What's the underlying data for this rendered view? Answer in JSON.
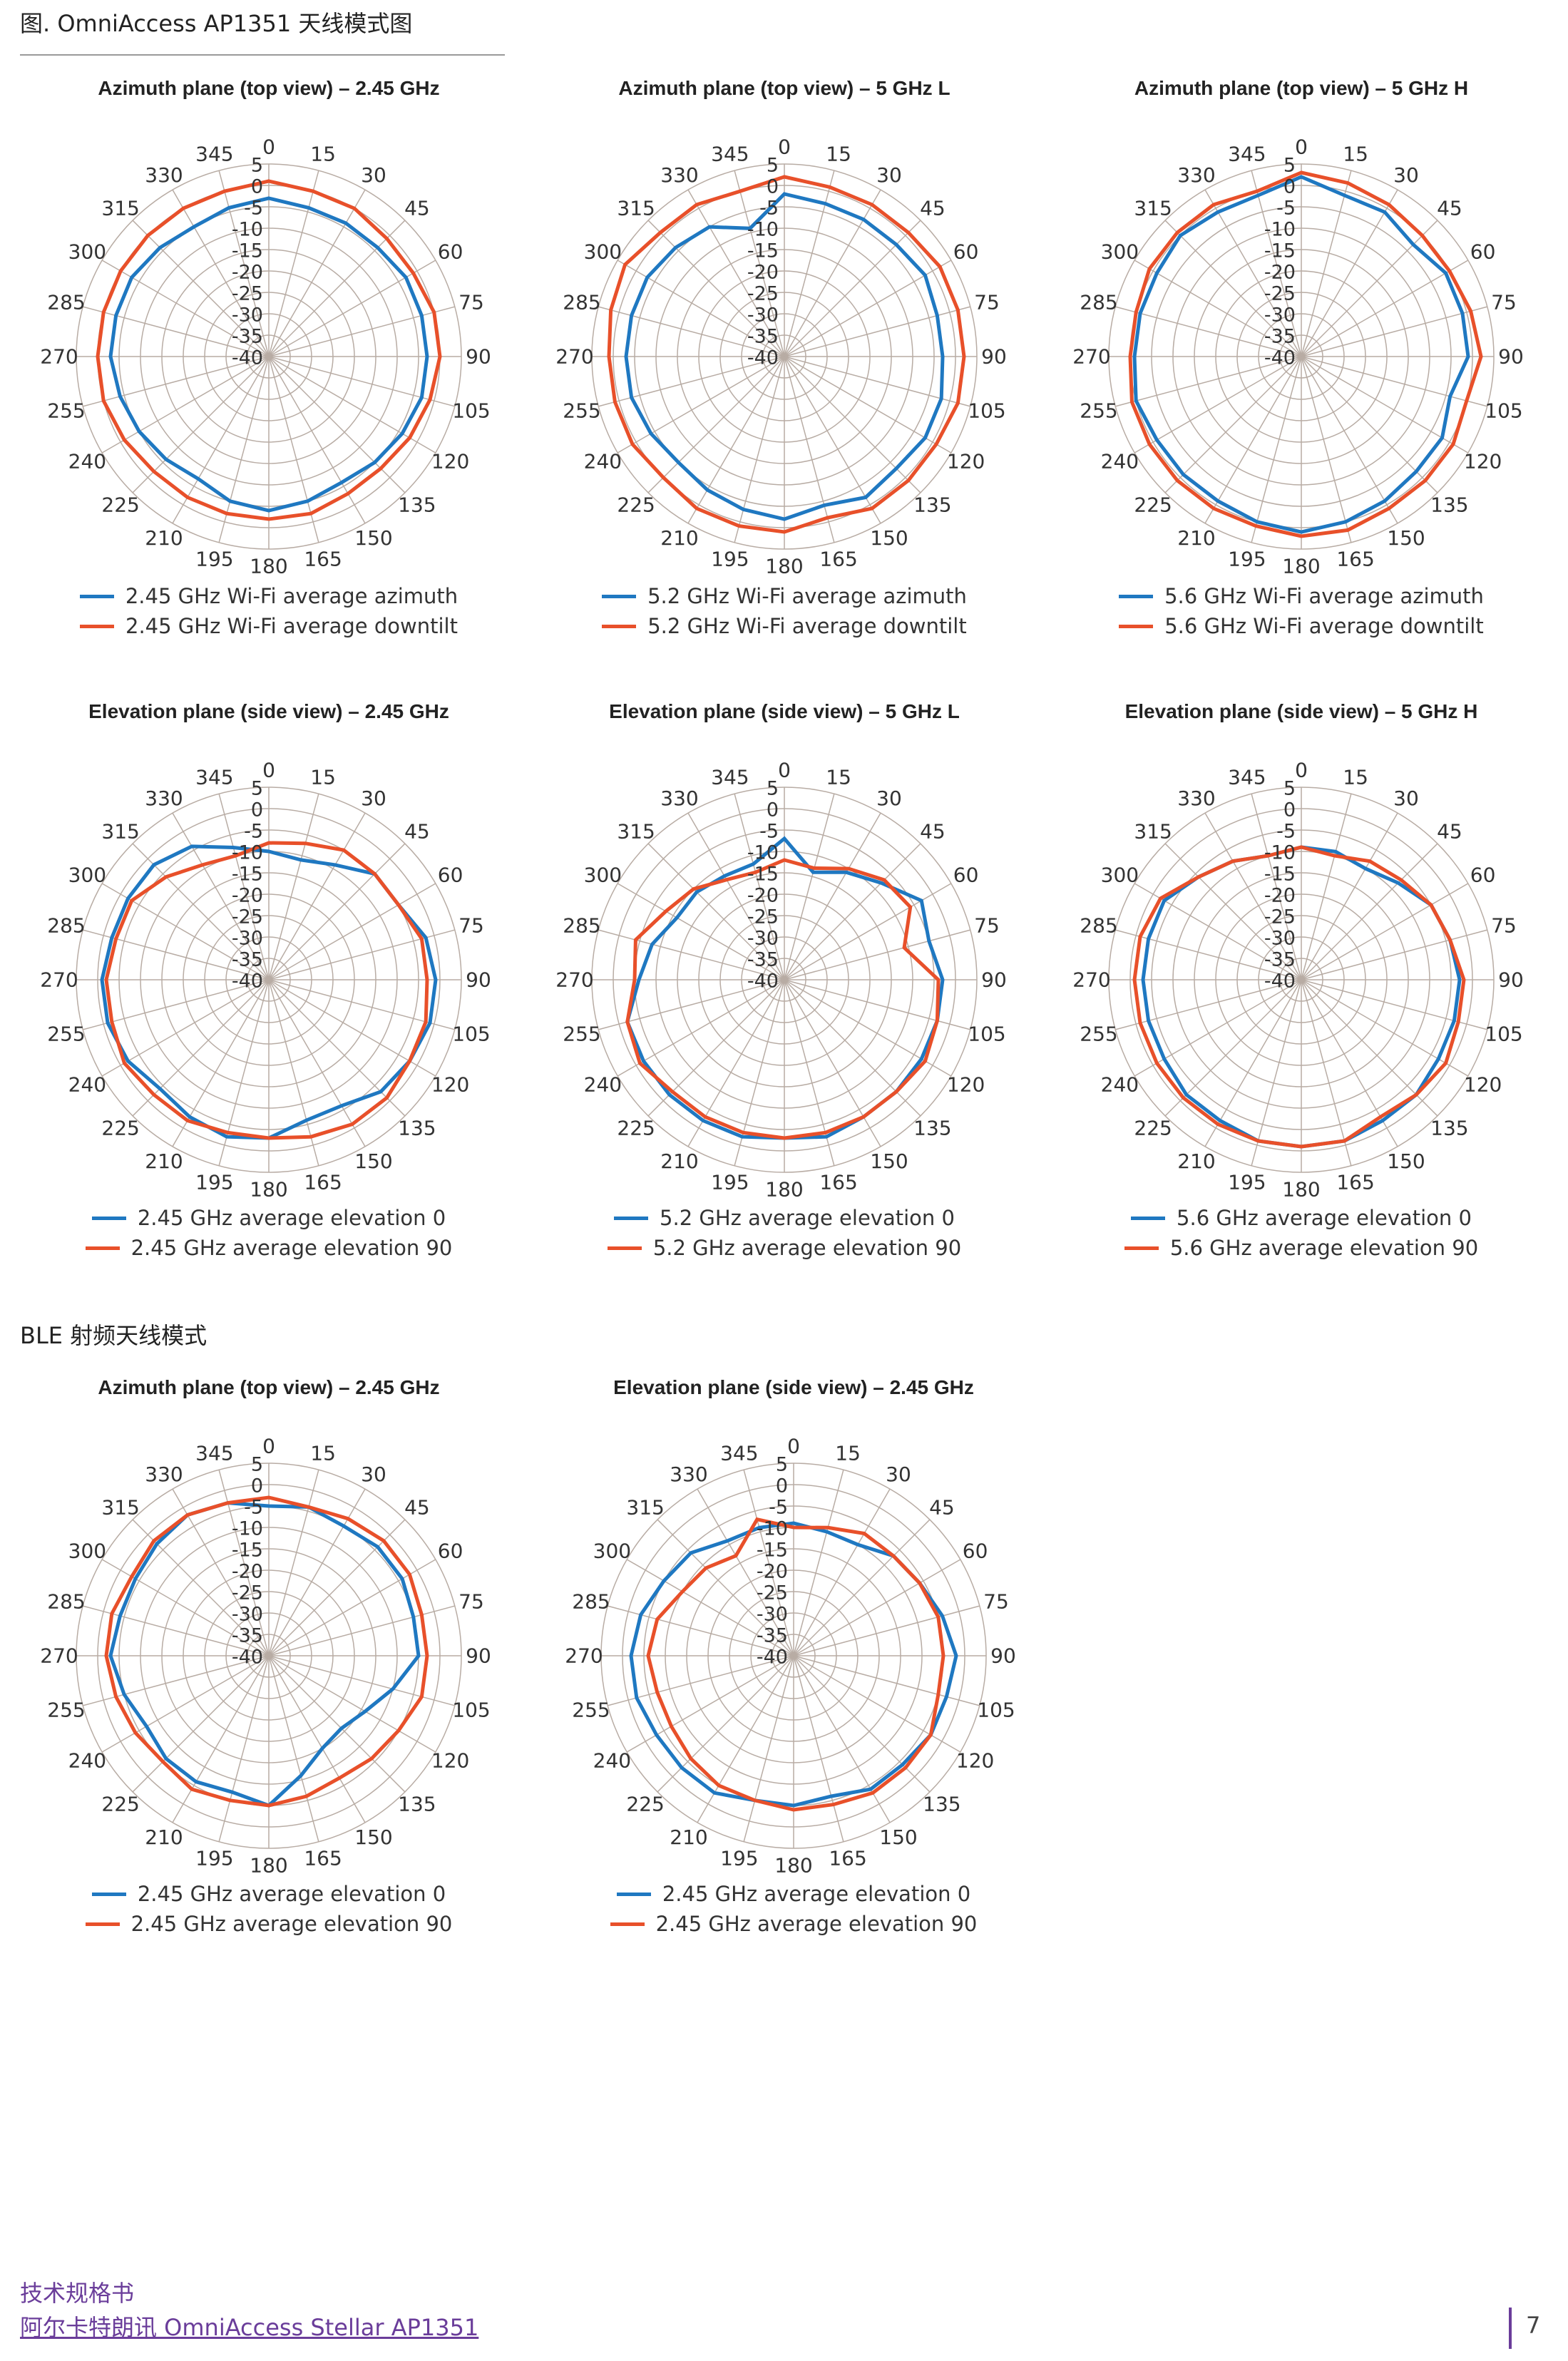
{
  "page": {
    "figure_title": "图. OmniAccess AP1351 天线模式图",
    "ble_section_title": "BLE 射频天线模式",
    "footer_line1": "技术规格书",
    "footer_line2": "阿尔卡特朗讯 OmniAccess Stellar AP1351",
    "page_number": "7"
  },
  "colors": {
    "blue": "#1f78c1",
    "red": "#e8502a",
    "grid": "#b8aca4",
    "axis": "#8a7d75"
  },
  "radial_ticks": [
    "5",
    "0",
    "-5",
    "-10",
    "-15",
    "-20",
    "-25",
    "-30",
    "-35",
    "-40"
  ],
  "angle_ticks": [
    "0",
    "15",
    "30",
    "45",
    "60",
    "75",
    "90",
    "105",
    "120",
    "135",
    "150",
    "165",
    "180",
    "195",
    "210",
    "225",
    "240",
    "255",
    "270",
    "285",
    "300",
    "315",
    "330",
    "345"
  ],
  "chart_data": [
    {
      "type": "polar",
      "title": "Azimuth plane (top view) – 2.45 GHz",
      "rlim": [
        -40,
        5
      ],
      "theta": [
        0,
        15,
        30,
        45,
        60,
        75,
        90,
        105,
        120,
        135,
        150,
        165,
        180,
        195,
        210,
        225,
        240,
        255,
        270,
        285,
        300,
        315,
        330,
        345
      ],
      "series": [
        {
          "name": "2.45 GHz Wi-Fi average azimuth",
          "color": "blue",
          "values": [
            -3,
            -4,
            -4,
            -4,
            -3,
            -3,
            -3,
            -3,
            -4,
            -5,
            -6,
            -5,
            -4,
            -5,
            -7,
            -6,
            -5,
            -4,
            -3,
            -3,
            -3,
            -4,
            -5,
            -4
          ]
        },
        {
          "name": "2.45 GHz Wi-Fi average downtilt",
          "color": "red",
          "values": [
            1,
            0,
            0,
            -1,
            -1,
            0,
            0,
            -1,
            -2,
            -3,
            -3,
            -2,
            -2,
            -2,
            -2,
            -2,
            -1,
            0,
            0,
            0,
            0,
            0,
            0,
            0
          ]
        }
      ]
    },
    {
      "type": "polar",
      "title": "Azimuth plane (top view) – 5 GHz L",
      "rlim": [
        -40,
        5
      ],
      "theta": [
        0,
        15,
        30,
        45,
        60,
        75,
        90,
        105,
        120,
        135,
        150,
        165,
        180,
        195,
        210,
        225,
        240,
        255,
        270,
        285,
        300,
        315,
        330,
        345
      ],
      "series": [
        {
          "name": "5.2 GHz Wi-Fi average azimuth",
          "color": "blue",
          "values": [
            -2,
            -3,
            -3,
            -3,
            -2,
            -3,
            -3,
            -2,
            -2,
            -3,
            -2,
            -4,
            -2,
            -3,
            -4,
            -5,
            -4,
            -3,
            -3,
            -3,
            -3,
            -4,
            -5,
            -9
          ]
        },
        {
          "name": "5.2 GHz Wi-Fi average downtilt",
          "color": "red",
          "values": [
            2,
            1,
            1,
            1,
            2,
            2,
            2,
            2,
            1,
            1,
            1,
            -1,
            1,
            1,
            1,
            0,
            1,
            1,
            1,
            2,
            3,
            1,
            1,
            0
          ]
        }
      ]
    },
    {
      "type": "polar",
      "title": "Azimuth plane (top view) – 5 GHz H",
      "rlim": [
        -40,
        5
      ],
      "theta": [
        0,
        15,
        30,
        45,
        60,
        75,
        90,
        105,
        120,
        135,
        150,
        165,
        180,
        195,
        210,
        225,
        240,
        255,
        270,
        285,
        300,
        315,
        330,
        345
      ],
      "series": [
        {
          "name": "5.6 GHz Wi-Fi average azimuth",
          "color": "blue",
          "values": [
            2,
            -1,
            -1,
            -3,
            -1,
            -1,
            -1,
            -4,
            -2,
            -2,
            -1,
            0,
            1,
            0,
            -1,
            -1,
            -1,
            0,
            -1,
            -1,
            -1,
            0,
            -1,
            -1
          ]
        },
        {
          "name": "5.6 GHz Wi-Fi average downtilt",
          "color": "red",
          "values": [
            3,
            2,
            1,
            0,
            0,
            1,
            2,
            0,
            1,
            1,
            1,
            2,
            2,
            1,
            1,
            1,
            1,
            1,
            0,
            0,
            1,
            1,
            1,
            0
          ]
        }
      ]
    },
    {
      "type": "polar",
      "title": "Elevation plane (side view) – 2.45 GHz",
      "rlim": [
        -40,
        5
      ],
      "theta": [
        0,
        15,
        30,
        45,
        60,
        75,
        90,
        105,
        120,
        135,
        150,
        165,
        180,
        195,
        210,
        225,
        240,
        255,
        270,
        285,
        300,
        315,
        330,
        345
      ],
      "series": [
        {
          "name": "2.45 GHz average elevation 0",
          "color": "blue",
          "values": [
            -10,
            -11,
            -9,
            -5,
            -5,
            -2,
            -1,
            -1,
            -2,
            -3,
            -6,
            -6,
            -3,
            -2,
            -3,
            -4,
            -2,
            -1,
            -1,
            -2,
            -2,
            -2,
            -4,
            -8
          ]
        },
        {
          "name": "2.45 GHz average elevation 90",
          "color": "red",
          "values": [
            -8,
            -7,
            -5,
            -5,
            -5,
            -3,
            -3,
            -2,
            -2,
            -1,
            -1,
            -2,
            -3,
            -3,
            -2,
            -2,
            -1,
            -2,
            -2,
            -3,
            -3,
            -6,
            -9,
            -10
          ]
        }
      ]
    },
    {
      "type": "polar",
      "title": "Elevation plane (side view) – 5 GHz L",
      "rlim": [
        -40,
        5
      ],
      "theta": [
        0,
        15,
        30,
        45,
        60,
        75,
        90,
        105,
        120,
        135,
        150,
        165,
        180,
        195,
        210,
        225,
        240,
        255,
        270,
        285,
        300,
        315,
        330,
        345
      ],
      "series": [
        {
          "name": "5.2 GHz average elevation 0",
          "color": "blue",
          "values": [
            -7,
            -14,
            -11,
            -8,
            -3,
            -5,
            -3,
            -3,
            -3,
            -3,
            -3,
            -2,
            -3,
            -2,
            -2,
            -2,
            -2,
            -2,
            -6,
            -8,
            -11,
            -11,
            -12,
            -12
          ]
        },
        {
          "name": "5.2 GHz average elevation 90",
          "color": "red",
          "values": [
            -12,
            -13,
            -10,
            -7,
            -6,
            -11,
            -4,
            -3,
            -2,
            -3,
            -3,
            -3,
            -3,
            -3,
            -3,
            -3,
            -1,
            -2,
            -5,
            -4,
            -8,
            -10,
            -13,
            -14
          ]
        }
      ]
    },
    {
      "type": "polar",
      "title": "Elevation plane (side view) – 5 GHz H",
      "rlim": [
        -40,
        5
      ],
      "theta": [
        0,
        15,
        30,
        45,
        60,
        75,
        90,
        105,
        120,
        135,
        150,
        165,
        180,
        195,
        210,
        225,
        240,
        255,
        270,
        285,
        300,
        315,
        330,
        345
      ],
      "series": [
        {
          "name": "5.6 GHz average elevation 0",
          "color": "blue",
          "values": [
            -9,
            -9,
            -10,
            -8,
            -5,
            -4,
            -3,
            -3,
            -3,
            -2,
            -2,
            -1,
            -1,
            -1,
            -2,
            -2,
            -3,
            -3,
            -3,
            -3,
            -3,
            -6,
            -8,
            -10
          ]
        },
        {
          "name": "5.6 GHz average elevation 90",
          "color": "red",
          "values": [
            -9,
            -10,
            -8,
            -7,
            -5,
            -4,
            -2,
            -2,
            -1,
            -2,
            -3,
            -1,
            -1,
            -1,
            -1,
            -1,
            -1,
            -1,
            -1,
            -1,
            -2,
            -6,
            -8,
            -10
          ]
        }
      ]
    },
    {
      "type": "polar",
      "title": "Azimuth plane (top view) – 2.45 GHz",
      "rlim": [
        -40,
        5
      ],
      "theta": [
        0,
        15,
        30,
        45,
        60,
        75,
        90,
        105,
        120,
        135,
        150,
        165,
        180,
        195,
        210,
        225,
        240,
        255,
        270,
        285,
        300,
        315,
        330,
        345
      ],
      "series": [
        {
          "name": "2.45 GHz average elevation 0",
          "color": "blue",
          "values": [
            -5,
            -4,
            -5,
            -4,
            -4,
            -5,
            -5,
            -10,
            -14,
            -16,
            -15,
            -11,
            -5,
            -7,
            -6,
            -6,
            -7,
            -5,
            -3,
            -4,
            -4,
            -3,
            -2,
            -3
          ]
        },
        {
          "name": "2.45 GHz average elevation 90",
          "color": "red",
          "values": [
            -3,
            -4,
            -3,
            -2,
            -2,
            -3,
            -3,
            -3,
            -5,
            -6,
            -7,
            -6,
            -5,
            -5,
            -4,
            -5,
            -4,
            -3,
            -2,
            -2,
            -3,
            -2,
            -2,
            -3
          ]
        }
      ]
    },
    {
      "type": "polar",
      "title": "Elevation plane (side view) – 2.45 GHz",
      "rlim": [
        -40,
        5
      ],
      "theta": [
        0,
        15,
        30,
        45,
        60,
        75,
        90,
        105,
        120,
        135,
        150,
        165,
        180,
        195,
        210,
        225,
        240,
        255,
        270,
        285,
        300,
        315,
        330,
        345
      ],
      "series": [
        {
          "name": "2.45 GHz average elevation 0",
          "color": "blue",
          "values": [
            -9,
            -10,
            -10,
            -7,
            -6,
            -4,
            -2,
            -3,
            -3,
            -4,
            -4,
            -6,
            -5,
            -5,
            -3,
            -3,
            -3,
            -2,
            -2,
            -3,
            -5,
            -6,
            -9,
            -9
          ]
        },
        {
          "name": "2.45 GHz average elevation 90",
          "color": "red",
          "values": [
            -10,
            -9,
            -7,
            -7,
            -6,
            -5,
            -5,
            -5,
            -3,
            -3,
            -3,
            -4,
            -4,
            -5,
            -5,
            -6,
            -7,
            -7,
            -6,
            -7,
            -10,
            -11,
            -13,
            -7
          ]
        }
      ]
    }
  ]
}
